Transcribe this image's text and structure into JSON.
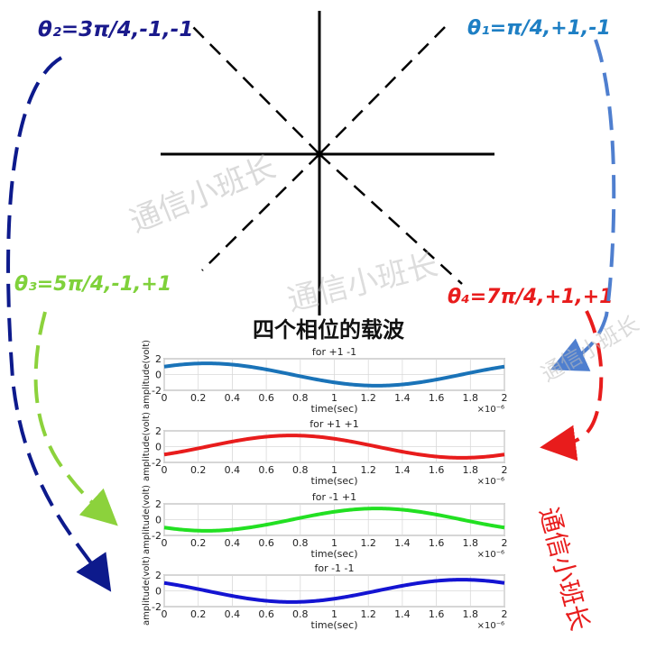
{
  "constellation": {
    "labels": [
      {
        "text": "θ₂=3π/4,-1,-1",
        "color": "#1a1a8c",
        "key": "theta-2"
      },
      {
        "text": "θ₁=π/4,+1,-1",
        "color": "#1e7fc4",
        "key": "theta-1"
      },
      {
        "text": "θ₃=5π/4,-1,+1",
        "color": "#7fd13b",
        "key": "theta-3"
      },
      {
        "text": "θ₄=7π/4,+1,+1",
        "color": "#e81c1c",
        "key": "theta-4"
      }
    ]
  },
  "main_title": "四个相位的载波",
  "watermark_text": "通信小班长",
  "chart_data": [
    {
      "type": "line",
      "title": "for +1 -1",
      "xlabel": "time(sec)",
      "ylabel": "amplitude(volt)",
      "xlim": [
        0,
        2
      ],
      "ylim": [
        -2,
        2
      ],
      "x_ticks": [
        0,
        0.2,
        0.4,
        0.6,
        0.8,
        1,
        1.2,
        1.4,
        1.6,
        1.8,
        2
      ],
      "y_ticks": [
        2,
        0,
        -2
      ],
      "x_exponent": "×10⁻⁶",
      "series": [
        {
          "color": "#1a73b8",
          "amplitude": 1.414,
          "phase_deg": 45,
          "period": 2
        }
      ]
    },
    {
      "type": "line",
      "title": "for +1 +1",
      "xlabel": "time(sec)",
      "ylabel": "amplitude(volt)",
      "xlim": [
        0,
        2
      ],
      "ylim": [
        -2,
        2
      ],
      "x_ticks": [
        0,
        0.2,
        0.4,
        0.6,
        0.8,
        1,
        1.2,
        1.4,
        1.6,
        1.8,
        2
      ],
      "y_ticks": [
        2,
        0,
        -2
      ],
      "x_exponent": "×10⁻⁶",
      "series": [
        {
          "color": "#e81c1c",
          "amplitude": 1.414,
          "phase_deg": 315,
          "period": 2
        }
      ]
    },
    {
      "type": "line",
      "title": "for -1 +1",
      "xlabel": "time(sec)",
      "ylabel": "amplitude(volt)",
      "xlim": [
        0,
        2
      ],
      "ylim": [
        -2,
        2
      ],
      "x_ticks": [
        0,
        0.2,
        0.4,
        0.6,
        0.8,
        1,
        1.2,
        1.4,
        1.6,
        1.8,
        2
      ],
      "y_ticks": [
        2,
        0,
        -2
      ],
      "x_exponent": "×10⁻⁶",
      "series": [
        {
          "color": "#22e022",
          "amplitude": 1.414,
          "phase_deg": 225,
          "period": 2
        }
      ]
    },
    {
      "type": "line",
      "title": "for -1 -1",
      "xlabel": "time(sec)",
      "ylabel": "amplitude(volt)",
      "xlim": [
        0,
        2
      ],
      "ylim": [
        -2,
        2
      ],
      "x_ticks": [
        0,
        0.2,
        0.4,
        0.6,
        0.8,
        1,
        1.2,
        1.4,
        1.6,
        1.8,
        2
      ],
      "y_ticks": [
        2,
        0,
        -2
      ],
      "x_exponent": "×10⁻⁶",
      "series": [
        {
          "color": "#1414d2",
          "amplitude": 1.414,
          "phase_deg": 135,
          "period": 2
        }
      ]
    }
  ]
}
